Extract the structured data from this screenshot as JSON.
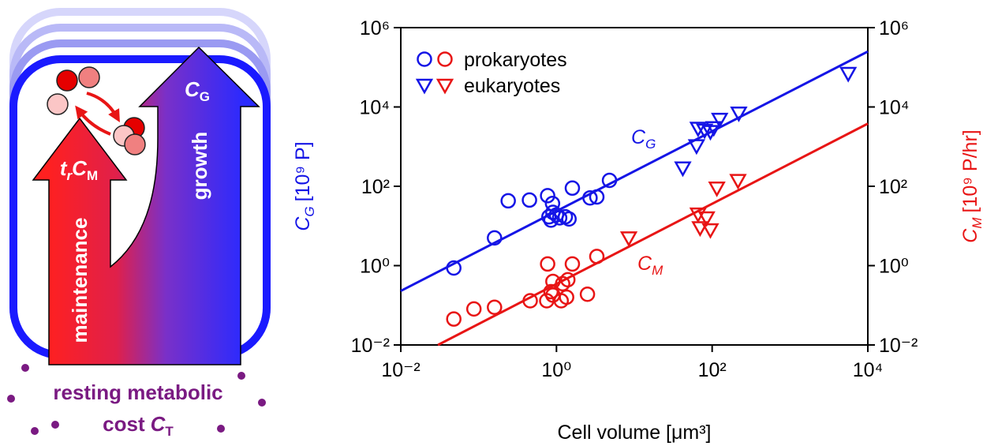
{
  "diagram": {
    "maintenance_label": "maintenance",
    "growth_label": "growth",
    "maintenance_symbol": {
      "pre": "t",
      "pre_sub": "r",
      "main": "C",
      "sub": "M"
    },
    "growth_symbol": {
      "main": "C",
      "sub": "G"
    },
    "caption_line1": "resting metabolic",
    "caption_line2": {
      "text": "cost",
      "main": "C",
      "sub": "T"
    }
  },
  "chart_data": {
    "type": "scatter",
    "log_x": true,
    "log_y": true,
    "xlim": [
      0.01,
      10000
    ],
    "xticks": [
      {
        "value": 0.01,
        "label": "10⁻²"
      },
      {
        "value": 1,
        "label": "10⁰"
      },
      {
        "value": 100,
        "label": "10²"
      },
      {
        "value": 10000,
        "label": "10⁴"
      }
    ],
    "ylim": [
      0.01,
      1000000
    ],
    "yticks": [
      {
        "value": 0.01,
        "label": "10⁻²"
      },
      {
        "value": 1,
        "label": "10⁰"
      },
      {
        "value": 100,
        "label": "10²"
      },
      {
        "value": 10000,
        "label": "10⁴"
      },
      {
        "value": 1000000,
        "label": "10⁶"
      }
    ],
    "y2lim": [
      0.01,
      1000000
    ],
    "y2ticks": [
      {
        "value": 0.01,
        "label": "10⁻²"
      },
      {
        "value": 1,
        "label": "10⁰"
      },
      {
        "value": 100,
        "label": "10²"
      },
      {
        "value": 10000,
        "label": "10⁴"
      },
      {
        "value": 1000000,
        "label": "10⁶"
      }
    ],
    "x_label": "Cell volume [μm³]",
    "y_label": {
      "main": "C",
      "sub": "G",
      "unit": "[10⁹ P]",
      "color": "#1515e6"
    },
    "y2_label": {
      "main": "C",
      "sub": "M",
      "unit": "[10⁹ P/hr]",
      "color": "#e81515"
    },
    "legend": "upper left",
    "series": [
      {
        "name": "prokaryotes",
        "marker": "circle",
        "groups": [
          {
            "color": "#1515e6",
            "axis": "y",
            "x": [
              0.048,
              0.16,
              0.24,
              0.45,
              0.77,
              0.89,
              0.8,
              0.85,
              0.9,
              1.0,
              1.1,
              1.3,
              1.45,
              1.6,
              2.7,
              3.3,
              4.8
            ],
            "values": [
              0.87,
              5,
              43,
              45,
              58,
              37,
              17,
              14,
              22,
              19,
              16,
              17,
              15,
              90,
              51,
              54,
              141
            ]
          },
          {
            "color": "#e81515",
            "axis": "y2",
            "x": [
              0.048,
              0.087,
              0.16,
              0.46,
              0.75,
              0.9,
              0.85,
              0.9,
              1.15,
              1.35,
              1.2,
              1.4,
              0.77,
              1.6,
              2.5,
              3.3
            ],
            "values": [
              0.045,
              0.081,
              0.089,
              0.13,
              0.13,
              0.18,
              0.22,
              0.4,
              0.13,
              0.16,
              0.35,
              0.44,
              1.1,
              1.1,
              0.19,
              1.7
            ]
          }
        ]
      },
      {
        "name": "eukaryotes",
        "marker": "triangle",
        "groups": [
          {
            "color": "#1515e6",
            "axis": "y",
            "x": [
              42,
              63,
              66,
              80,
              95,
              105,
              125,
              220,
              5600
            ],
            "values": [
              290,
              1050,
              2900,
              2600,
              2400,
              3000,
              4900,
              7000,
              70000
            ]
          },
          {
            "color": "#e81515",
            "axis": "y2",
            "x": [
              8.5,
              66,
              70,
              85,
              95,
              115,
              215
            ],
            "values": [
              5,
              20,
              9,
              16,
              8,
              90,
              140
            ]
          }
        ]
      }
    ],
    "fits": [
      {
        "color": "#1515e6",
        "axis": "y",
        "x": [
          0.01,
          10000
        ],
        "values": [
          0.23,
          250000
        ],
        "label": {
          "main": "C",
          "sub": "G"
        }
      },
      {
        "color": "#e81515",
        "axis": "y2",
        "x": [
          0.03,
          10000
        ],
        "values": [
          0.01,
          3800
        ],
        "label": {
          "main": "C",
          "sub": "M"
        }
      }
    ]
  }
}
